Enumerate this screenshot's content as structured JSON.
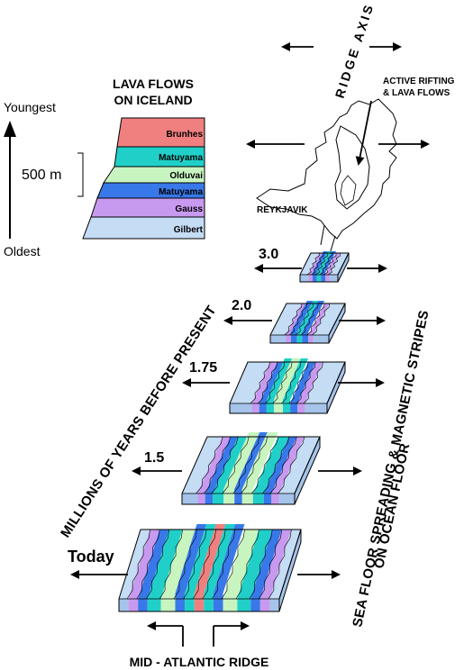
{
  "colors": {
    "brunhes": "#f08080",
    "matuyama": "#20d0c8",
    "olduvai": "#c8f4c0",
    "gauss": "#c89aef",
    "gilbert": "#c4dcf4",
    "blue": "#3878e8",
    "plate_top": "#c4dcf4",
    "plate_side": "#a6c4ea",
    "stroke": "#000000"
  },
  "column": {
    "title_line1": "LAVA FLOWS",
    "title_line2": "ON ICELAND",
    "layers": [
      "Brunhes",
      "Matuyama",
      "Olduvai",
      "Matuyama",
      "Gauss",
      "Gilbert"
    ],
    "scale_label": "500 m",
    "youngest_label": "Youngest",
    "oldest_label": "Oldest"
  },
  "iceland": {
    "ridge_axis_label": "RIDGE AXIS",
    "rifting_line1": "ACTIVE RIFTING",
    "rifting_line2": "& LAVA FLOWS",
    "city_label": "REYKJAVIK"
  },
  "blocks": [
    {
      "time": "3.0"
    },
    {
      "time": "2.0"
    },
    {
      "time": "1.75"
    },
    {
      "time": "1.5"
    },
    {
      "time": "Today"
    }
  ],
  "labels": {
    "years_axis": "MILLIONS OF YEARS BEFORE PRESENT",
    "spreading_line1": "SEA FLOOR SPREADING & MAGNETIC STRIPES",
    "spreading_line2": "ON OCEAN FLOOR",
    "ridge": "MID - ATLANTIC RIDGE"
  }
}
